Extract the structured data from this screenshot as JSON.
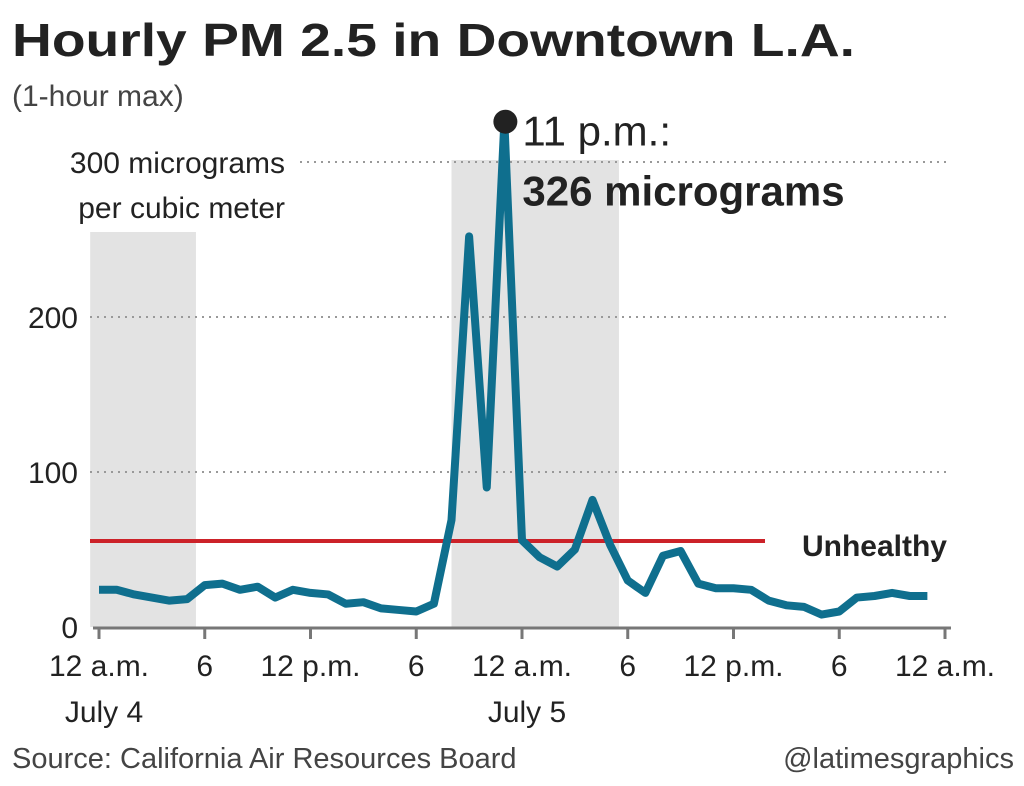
{
  "chart_data": {
    "type": "line",
    "title": "Hourly PM 2.5 in Downtown L.A.",
    "subtitle": "(1-hour max)",
    "ylabel": "per cubic meter",
    "x": [
      0,
      1,
      2,
      3,
      4,
      5,
      6,
      7,
      8,
      9,
      10,
      11,
      12,
      13,
      14,
      15,
      16,
      17,
      18,
      19,
      20,
      21,
      22,
      23,
      24,
      25,
      26,
      27,
      28,
      29,
      30,
      31,
      32,
      33,
      34,
      35,
      36,
      37,
      38,
      39,
      40,
      41,
      42,
      43,
      44,
      45,
      46,
      47
    ],
    "series": [
      {
        "name": "PM 2.5",
        "color": "#0f6f8e",
        "values": [
          24,
          24,
          21,
          19,
          17,
          18,
          27,
          28,
          24,
          26,
          19,
          24,
          22,
          21,
          15,
          16,
          12,
          11,
          10,
          15,
          69,
          252,
          90,
          326,
          56,
          45,
          39,
          50,
          82,
          53,
          30,
          22,
          46,
          49,
          28,
          25,
          25,
          24,
          17,
          14,
          13,
          8,
          10,
          19,
          20,
          22,
          20,
          20
        ]
      }
    ],
    "xlim": [
      0,
      48
    ],
    "xticks": [
      {
        "value": 0,
        "label": "12 a.m."
      },
      6,
      {
        "value": 12,
        "label": "12 p.m."
      },
      {
        "value": 18,
        "label": "6"
      },
      {
        "value": 24,
        "label": "12 a.m."
      },
      {
        "value": 30,
        "label": "6"
      },
      {
        "value": 36,
        "label": "12 p.m."
      },
      {
        "value": 42,
        "label": "6"
      },
      {
        "value": 48,
        "label": "12 a.m."
      }
    ],
    "date_labels": [
      {
        "value": 0,
        "label": "July 4"
      },
      {
        "value": 24,
        "label": "July 5"
      }
    ],
    "ylim": [
      0,
      326
    ],
    "yticks": [
      0,
      100,
      200,
      {
        "value": 300,
        "label": "300 micrograms"
      }
    ],
    "grid": true,
    "shaded_spans": [
      [
        -0.5,
        5.5
      ],
      [
        20,
        29.5
      ]
    ],
    "reference_line": {
      "value": 55.5,
      "label": "Unhealthy",
      "color": "#cc2229"
    },
    "annotation": {
      "x": 23,
      "line1": "11 p.m.:",
      "line2": "326 micrograms"
    },
    "source": "Source: California Air Resources Board",
    "credit": "@latimesgraphics"
  }
}
